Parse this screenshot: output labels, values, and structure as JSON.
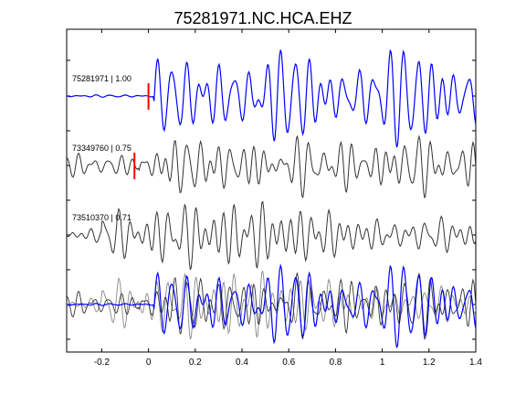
{
  "chart_data": {
    "type": "line",
    "title": "75281971.NC.HCA.EHZ",
    "xlabel": "",
    "ylabel": "",
    "xlim": [
      -0.35,
      1.4
    ],
    "xticks": [
      -0.2,
      0,
      0.2,
      0.4,
      0.6,
      0.8,
      1,
      1.2,
      1.4
    ],
    "xtick_labels": [
      "-0.2",
      "0",
      "0.2",
      "0.4",
      "0.6",
      "0.8",
      "1",
      "1.2",
      "1.4"
    ],
    "grid": false,
    "colors": {
      "primary_trace": "#0000ff",
      "secondary_trace": "#333333",
      "overlay_trace": "#888888",
      "pick_marker": "#ff0000"
    },
    "traces": [
      {
        "label": "75281971 | 1.00",
        "color": "#0000ff",
        "pick_x": 0.0,
        "seed": 11
      },
      {
        "label": "73349760 | 0.75",
        "color": "#333333",
        "pick_x": -0.06,
        "seed": 23
      },
      {
        "label": "73510370 | 0.71",
        "color": "#333333",
        "pick_x": null,
        "seed": 37
      }
    ],
    "stack_overlay": {
      "label": "",
      "colors": [
        "#0000ff",
        "#333333",
        "#888888"
      ]
    }
  }
}
